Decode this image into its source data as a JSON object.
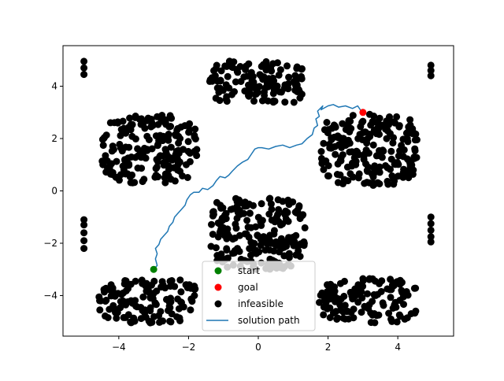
{
  "chart_data": {
    "type": "scatter",
    "title": "",
    "xlabel": "",
    "ylabel": "",
    "xlim": [
      -5.6,
      5.6
    ],
    "ylim": [
      -5.55,
      5.55
    ],
    "x_ticks": [
      -4,
      -2,
      0,
      2,
      4
    ],
    "y_ticks": [
      -4,
      -2,
      0,
      2,
      4
    ],
    "x_tick_labels": [
      "−4",
      "−2",
      "0",
      "2",
      "4"
    ],
    "y_tick_labels": [
      "−4",
      "−2",
      "0",
      "2",
      "4"
    ],
    "grid": false,
    "legend_position": "lower center",
    "legend": [
      {
        "label": "start",
        "kind": "marker",
        "color": "#008000"
      },
      {
        "label": "goal",
        "kind": "marker",
        "color": "#ff0000"
      },
      {
        "label": "infeasible",
        "kind": "marker",
        "color": "#000000"
      },
      {
        "label": "solution path",
        "kind": "line",
        "color": "#1f77b4"
      }
    ],
    "start": {
      "x": -3.0,
      "y": -3.0
    },
    "goal": {
      "x": 3.0,
      "y": 3.0
    },
    "infeasible_regions": [
      {
        "x": [
          -4.5,
          -1.75
        ],
        "y": [
          0.3,
          2.9
        ]
      },
      {
        "x": [
          1.8,
          4.6
        ],
        "y": [
          0.2,
          2.95
        ]
      },
      {
        "x": [
          -1.4,
          1.35
        ],
        "y": [
          3.3,
          5.0
        ]
      },
      {
        "x": [
          -1.4,
          1.35
        ],
        "y": [
          -3.0,
          -0.2
        ]
      },
      {
        "x": [
          -4.6,
          -1.75
        ],
        "y": [
          -5.05,
          -3.35
        ]
      },
      {
        "x": [
          1.75,
          4.55
        ],
        "y": [
          -5.05,
          -3.35
        ]
      }
    ],
    "boundary_points": [
      {
        "x": -5.0,
        "y": 4.95
      },
      {
        "x": -5.0,
        "y": 4.7
      },
      {
        "x": -5.0,
        "y": 4.45
      },
      {
        "x": 4.95,
        "y": 4.8
      },
      {
        "x": 4.95,
        "y": 4.6
      },
      {
        "x": 4.95,
        "y": 4.4
      },
      {
        "x": -5.0,
        "y": -1.1
      },
      {
        "x": -5.0,
        "y": -1.3
      },
      {
        "x": -5.0,
        "y": -1.6
      },
      {
        "x": -5.0,
        "y": -1.9
      },
      {
        "x": -5.0,
        "y": -2.2
      },
      {
        "x": 4.95,
        "y": -1.0
      },
      {
        "x": 4.95,
        "y": -1.25
      },
      {
        "x": 4.95,
        "y": -1.5
      },
      {
        "x": 4.95,
        "y": -1.75
      },
      {
        "x": 4.95,
        "y": -1.95
      }
    ],
    "solution_path": {
      "x": [
        -3.0,
        -2.9,
        -2.95,
        -2.9,
        -2.95,
        -2.85,
        -2.8,
        -2.7,
        -2.6,
        -2.55,
        -2.45,
        -2.4,
        -2.3,
        -2.2,
        -2.1,
        -2.05,
        -1.95,
        -1.85,
        -1.7,
        -1.6,
        -1.45,
        -1.3,
        -1.2,
        -1.1,
        -0.95,
        -0.85,
        -0.75,
        -0.6,
        -0.45,
        -0.3,
        -0.2,
        -0.1,
        0.0,
        0.1,
        0.3,
        0.5,
        0.7,
        0.9,
        1.1,
        1.25,
        1.4,
        1.55,
        1.6,
        1.7,
        1.65,
        1.75,
        1.7,
        1.85,
        1.8,
        2.0,
        2.15,
        2.3,
        2.5,
        2.7,
        2.85,
        2.95,
        3.0
      ],
      "y": [
        -3.0,
        -2.85,
        -2.6,
        -2.4,
        -2.2,
        -2.05,
        -1.85,
        -1.7,
        -1.55,
        -1.35,
        -1.2,
        -1.0,
        -0.85,
        -0.7,
        -0.55,
        -0.35,
        -0.15,
        -0.05,
        -0.05,
        0.1,
        0.05,
        0.2,
        0.4,
        0.55,
        0.5,
        0.6,
        0.75,
        0.95,
        1.1,
        1.2,
        1.4,
        1.6,
        1.65,
        1.65,
        1.6,
        1.7,
        1.75,
        1.65,
        1.75,
        1.8,
        2.0,
        2.15,
        2.4,
        2.5,
        2.75,
        2.85,
        3.05,
        3.25,
        3.1,
        3.25,
        3.3,
        3.2,
        3.25,
        3.15,
        3.25,
        3.05,
        3.0
      ]
    }
  }
}
